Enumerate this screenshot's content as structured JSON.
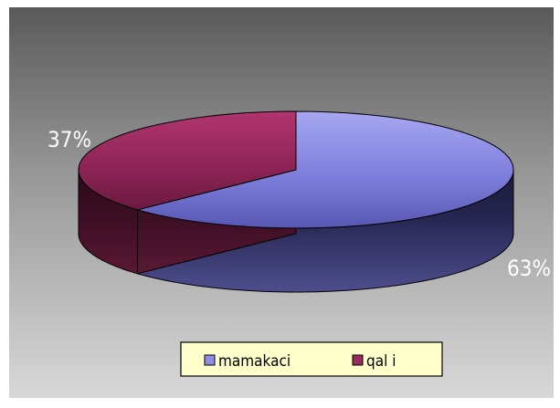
{
  "chart_data": {
    "type": "pie",
    "style": "3d-pie",
    "title": "",
    "slices": [
      {
        "label": "mamakaci",
        "value": 63,
        "percent_label": "63%",
        "color": "#8f8fe6"
      },
      {
        "label": "qal i",
        "value": 37,
        "percent_label": "37%",
        "color": "#9a2a5e"
      }
    ],
    "legend": {
      "position": "bottom",
      "items": [
        {
          "label": "mamakaci",
          "color": "#8f8fe6"
        },
        {
          "label": "qal i",
          "color": "#9a2a5e"
        }
      ],
      "background": "#ffffcc"
    },
    "background_colors": {
      "top": "#5a5a5a",
      "bottom": "#d8d8d8"
    }
  }
}
